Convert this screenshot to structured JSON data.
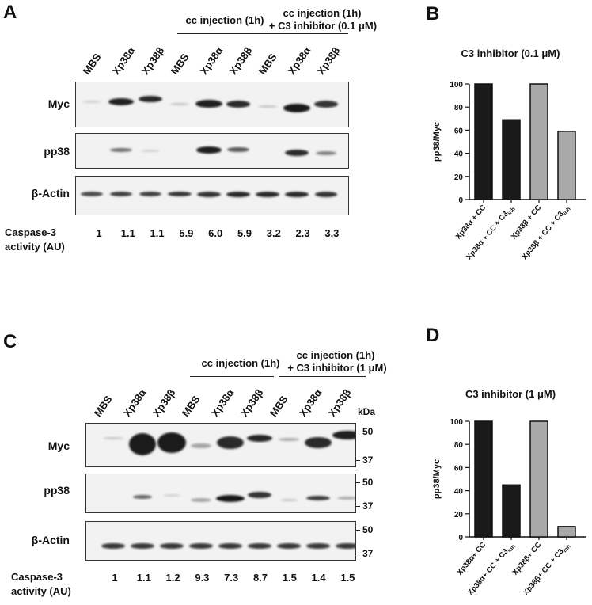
{
  "panel_a": {
    "letter": "A",
    "group_headers": [
      "cc injection (1h)",
      "cc injection (1h)",
      "+ C3 inhibitor (0.1 μM)"
    ],
    "lanes": [
      "MBS",
      "Xp38α",
      "Xp38β",
      "MBS",
      "Xp38α",
      "Xp38β",
      "MBS",
      "Xp38α",
      "Xp38β"
    ],
    "rows": [
      "Myc",
      "pp38",
      "β-Actin"
    ],
    "caspase_label": [
      "Caspase-3",
      "activity (AU)"
    ],
    "caspase_values": [
      "1",
      "1.1",
      "1.1",
      "5.9",
      "6.0",
      "5.9",
      "3.2",
      "2.3",
      "3.3"
    ]
  },
  "panel_b": {
    "letter": "B",
    "chart_data": {
      "type": "bar",
      "title": "C3 inhibitor (0.1 μM)",
      "ylabel": "pp38/Myc",
      "ylim": [
        0,
        100
      ],
      "yticks": [
        "0",
        "20",
        "40",
        "60",
        "80",
        "100"
      ],
      "categories": [
        "Xp38α + CC",
        "Xp38α + CC + C3inh",
        "Xp38β + CC",
        "Xp38β + CC + C3inh"
      ],
      "values": [
        100,
        69,
        100,
        59
      ],
      "bar_colors": [
        "#1a1a1a",
        "#1a1a1a",
        "#a9a9a9",
        "#a9a9a9"
      ]
    }
  },
  "panel_c": {
    "letter": "C",
    "group_headers": [
      "cc injection (1h)",
      "cc injection (1h)",
      "+ C3 inhibitor (1 μM)"
    ],
    "lanes": [
      "MBS",
      "Xp38α",
      "Xp38β",
      "MBS",
      "Xp38α",
      "Xp38β",
      "MBS",
      "Xp38α",
      "Xp38β"
    ],
    "rows": [
      "Myc",
      "pp38",
      "β-Actin"
    ],
    "kda_label": "kDa",
    "mw_markers": [
      "50",
      "37"
    ],
    "caspase_label": [
      "Caspase-3",
      "activity (AU)"
    ],
    "caspase_values": [
      "1",
      "1.1",
      "1.2",
      "9.3",
      "7.3",
      "8.7",
      "1.5",
      "1.4",
      "1.5"
    ]
  },
  "panel_d": {
    "letter": "D",
    "chart_data": {
      "type": "bar",
      "title": "C3 inhibitor (1 μM)",
      "ylabel": "pp38/Myc",
      "ylim": [
        0,
        100
      ],
      "yticks": [
        "0",
        "20",
        "40",
        "60",
        "80",
        "100"
      ],
      "categories": [
        "Xp38α+ CC",
        "Xp38α+ CC + C3inh",
        "Xp38β+ CC",
        "Xp38β+ CC + C3inh"
      ],
      "values": [
        100,
        45,
        100,
        9
      ],
      "bar_colors": [
        "#1a1a1a",
        "#1a1a1a",
        "#a9a9a9",
        "#a9a9a9"
      ]
    }
  }
}
